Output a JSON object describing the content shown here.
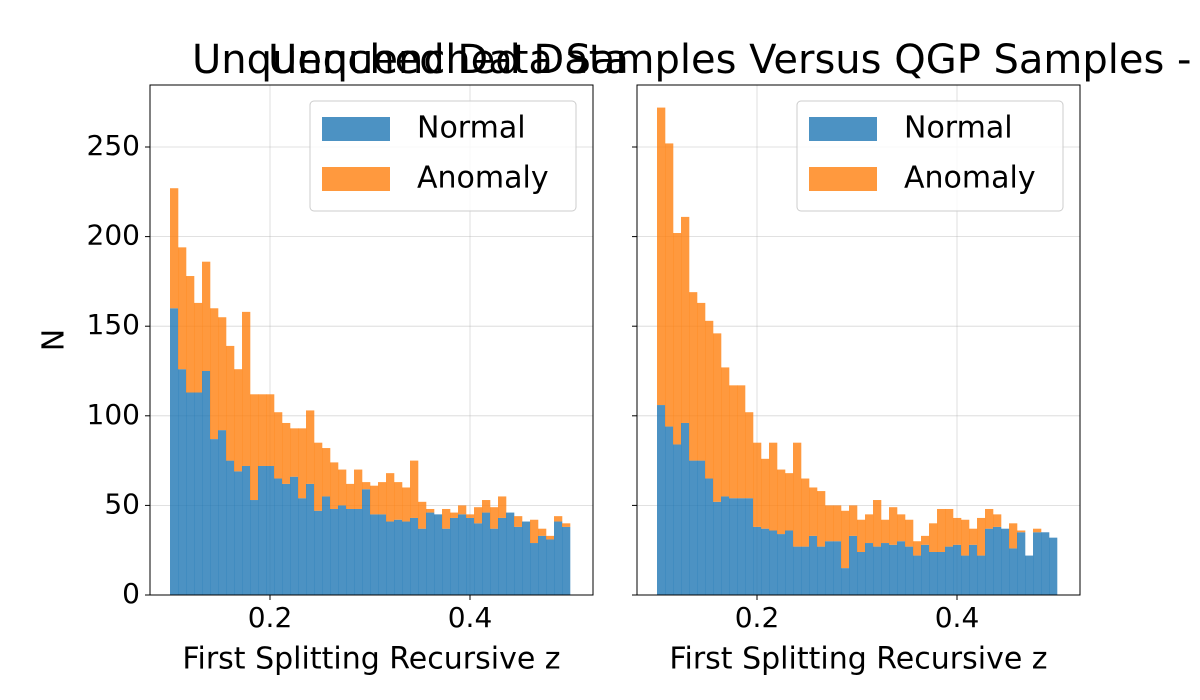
{
  "suptitle": "Unquenched Data Samples Versus QGP Samples  - F",
  "chart_data": [
    {
      "type": "histogram",
      "title": "Unquenched Data",
      "xlabel": "First Splitting Recursive z",
      "ylabel": "N",
      "bins": [
        0.1,
        0.108,
        0.116,
        0.124,
        0.132,
        0.14,
        0.148,
        0.156,
        0.164,
        0.172,
        0.18,
        0.188,
        0.196,
        0.204,
        0.212,
        0.22,
        0.228,
        0.236,
        0.244,
        0.252,
        0.26,
        0.268,
        0.276,
        0.284,
        0.292,
        0.3,
        0.308,
        0.316,
        0.324,
        0.332,
        0.34,
        0.348,
        0.356,
        0.364,
        0.372,
        0.38,
        0.388,
        0.396,
        0.404,
        0.412,
        0.42,
        0.428,
        0.436,
        0.444,
        0.452,
        0.46,
        0.468,
        0.476,
        0.484,
        0.492,
        0.5
      ],
      "stacked": true,
      "alpha": 0.8,
      "series": [
        {
          "name": "Normal",
          "color": "#1f77b4",
          "values": [
            160,
            126,
            113,
            113,
            125,
            87,
            92,
            75,
            69,
            72,
            53,
            72,
            72,
            65,
            62,
            66,
            54,
            62,
            47,
            55,
            48,
            50,
            48,
            48,
            59,
            45,
            45,
            41,
            42,
            41,
            43,
            37,
            46,
            45,
            37,
            43,
            45,
            43,
            40,
            46,
            37,
            43,
            46,
            38,
            41,
            29,
            33,
            31,
            41,
            38
          ]
        },
        {
          "name": "Anomaly",
          "color": "#ff7f0e",
          "values": [
            67,
            68,
            65,
            50,
            61,
            73,
            63,
            64,
            57,
            86,
            59,
            40,
            40,
            37,
            34,
            27,
            39,
            41,
            38,
            27,
            26,
            20,
            14,
            22,
            4,
            16,
            18,
            27,
            21,
            19,
            32,
            15,
            2,
            0,
            11,
            3,
            5,
            2,
            9,
            7,
            12,
            12,
            0,
            6,
            0,
            13,
            4,
            2,
            3,
            2
          ]
        }
      ],
      "xlim": [
        0.08,
        0.523
      ],
      "ylim": [
        0,
        284.6
      ],
      "xticks": [
        0.2,
        0.4
      ],
      "yticks": [
        0,
        50,
        100,
        150,
        200,
        250
      ],
      "grid": true,
      "legend": "upper right"
    },
    {
      "type": "histogram",
      "xlabel": "First Splitting Recursive z",
      "bins": [
        0.1,
        0.108,
        0.116,
        0.124,
        0.132,
        0.14,
        0.148,
        0.156,
        0.164,
        0.172,
        0.18,
        0.188,
        0.196,
        0.204,
        0.212,
        0.22,
        0.228,
        0.236,
        0.244,
        0.252,
        0.26,
        0.268,
        0.276,
        0.284,
        0.292,
        0.3,
        0.308,
        0.316,
        0.324,
        0.332,
        0.34,
        0.348,
        0.356,
        0.364,
        0.372,
        0.38,
        0.388,
        0.396,
        0.404,
        0.412,
        0.42,
        0.428,
        0.436,
        0.444,
        0.452,
        0.46,
        0.468,
        0.476,
        0.484,
        0.492,
        0.5
      ],
      "stacked": true,
      "alpha": 0.8,
      "series": [
        {
          "name": "Normal",
          "color": "#1f77b4",
          "values": [
            106,
            94,
            84,
            96,
            75,
            75,
            65,
            52,
            55,
            54,
            54,
            54,
            38,
            37,
            36,
            34,
            36,
            27,
            27,
            33,
            27,
            30,
            30,
            15,
            33,
            24,
            29,
            27,
            29,
            28,
            30,
            27,
            22,
            28,
            24,
            24,
            27,
            28,
            22,
            28,
            22,
            37,
            38,
            37,
            26,
            35,
            22,
            35,
            35,
            32
          ]
        },
        {
          "name": "Anomaly",
          "color": "#ff7f0e",
          "values": [
            166,
            158,
            118,
            115,
            94,
            88,
            88,
            94,
            72,
            63,
            63,
            48,
            47,
            39,
            49,
            36,
            32,
            58,
            38,
            27,
            31,
            20,
            20,
            32,
            17,
            18,
            16,
            26,
            13,
            21,
            15,
            15,
            8,
            5,
            16,
            24,
            21,
            15,
            20,
            9,
            21,
            11,
            7,
            0,
            14,
            1,
            0,
            2,
            0,
            0
          ]
        }
      ],
      "xlim": [
        0.08,
        0.523
      ],
      "ylim": [
        0,
        284.6
      ],
      "xticks": [
        0.2,
        0.4
      ],
      "yticks": [
        0,
        50,
        100,
        150,
        200,
        250
      ],
      "ytick_labels": false,
      "grid": true,
      "legend": "upper right"
    }
  ]
}
